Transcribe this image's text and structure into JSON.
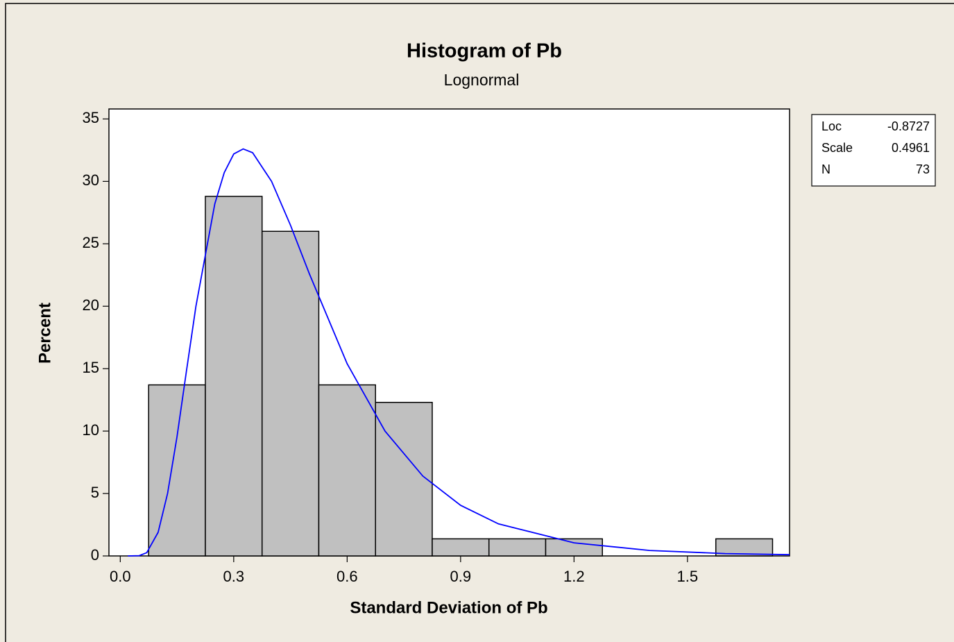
{
  "chart_data": {
    "type": "histogram",
    "title": "Histogram of Pb",
    "subtitle": "Lognormal",
    "x_label": "Standard Deviation of Pb",
    "y_label": "Percent",
    "bins": [
      0.075,
      0.225,
      0.375,
      0.525,
      0.675,
      0.825,
      0.975,
      1.125,
      1.275,
      1.425,
      1.575,
      1.725
    ],
    "values": [
      13.7,
      28.8,
      26.0,
      13.7,
      12.3,
      1.37,
      1.37,
      1.37,
      0,
      0,
      1.37
    ],
    "color": "#c0c0c0",
    "fit": {
      "color": "#0000ff",
      "x": [
        0.02,
        0.05,
        0.07,
        0.1,
        0.125,
        0.15,
        0.175,
        0.2,
        0.25,
        0.275,
        0.3,
        0.325,
        0.35,
        0.4,
        0.45,
        0.5,
        0.6,
        0.7,
        0.8,
        0.9,
        1.0,
        1.2,
        1.4,
        1.6,
        1.77
      ],
      "y": [
        0,
        0.025,
        0.26,
        1.89,
        5.0,
        9.54,
        14.8,
        20.0,
        28.2,
        30.7,
        32.2,
        32.6,
        32.3,
        30.0,
        26.5,
        22.6,
        15.4,
        10.0,
        6.4,
        4.05,
        2.57,
        1.05,
        0.44,
        0.19,
        0.1
      ]
    },
    "xlim": [
      -0.03,
      1.77
    ],
    "ylim": [
      0,
      35.8
    ],
    "xticks": [
      {
        "value": 0,
        "label": "0.0"
      },
      0.3,
      0.6,
      0.9,
      1.2,
      1.5
    ],
    "yticks": [
      0,
      5,
      10,
      15,
      20,
      25,
      30,
      35
    ],
    "stats": [
      {
        "label": "Loc",
        "value": -0.8727
      },
      {
        "label": "Scale",
        "value": 0.4961
      },
      {
        "label": "N",
        "value": 73
      }
    ]
  }
}
